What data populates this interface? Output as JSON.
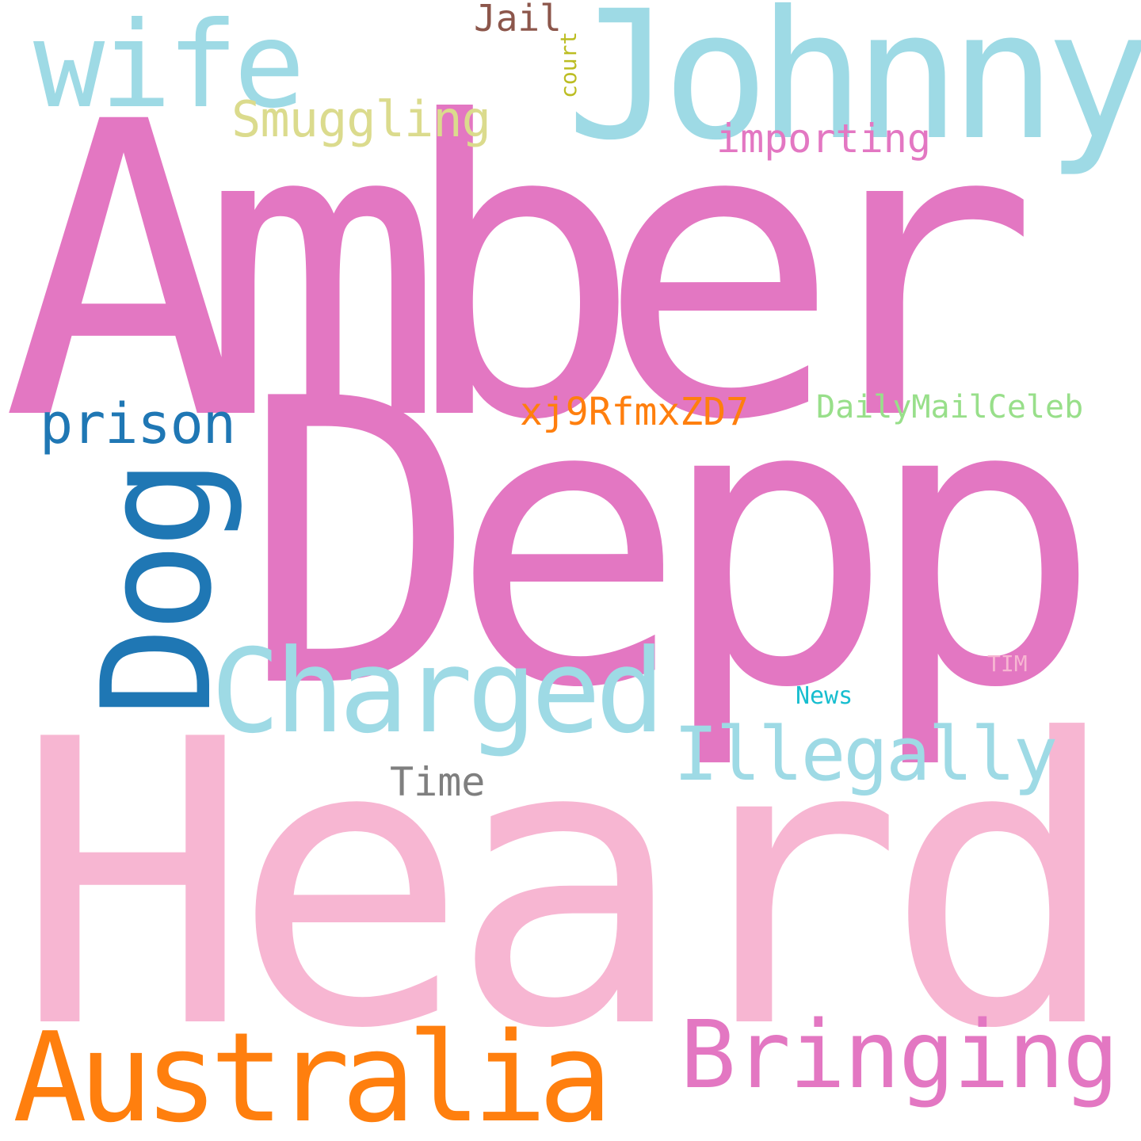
{
  "words": [
    {
      "id": "amber",
      "text": "Amber",
      "color": "#e377c2"
    },
    {
      "id": "depp",
      "text": "Depp",
      "color": "#e377c2"
    },
    {
      "id": "heard",
      "text": "Heard",
      "color": "#f7b6d2"
    },
    {
      "id": "johnny",
      "text": "Johnny",
      "color": "#9edae5"
    },
    {
      "id": "wife",
      "text": "wife",
      "color": "#9edae5"
    },
    {
      "id": "australia",
      "text": "Australia",
      "color": "#ff7f0e"
    },
    {
      "id": "bringing",
      "text": "Bringing",
      "color": "#e377c2"
    },
    {
      "id": "dog",
      "text": "Dog",
      "color": "#1f77b4"
    },
    {
      "id": "charged",
      "text": "Charged",
      "color": "#9edae5"
    },
    {
      "id": "illegally",
      "text": "Illegally",
      "color": "#9edae5"
    },
    {
      "id": "smuggling",
      "text": "Smuggling",
      "color": "#dbdb8d"
    },
    {
      "id": "prison",
      "text": "prison",
      "color": "#1f77b4"
    },
    {
      "id": "xj9",
      "text": "xj9RfmxZD7",
      "color": "#ff7f0e"
    },
    {
      "id": "dailymail",
      "text": "DailyMailCeleb",
      "color": "#98df8a"
    },
    {
      "id": "importing",
      "text": "importing",
      "color": "#e377c2"
    },
    {
      "id": "jail",
      "text": "Jail",
      "color": "#8c564b"
    },
    {
      "id": "court",
      "text": "court",
      "color": "#bcbd22"
    },
    {
      "id": "time",
      "text": "Time",
      "color": "#7f7f7f"
    },
    {
      "id": "news",
      "text": "News",
      "color": "#17becf"
    },
    {
      "id": "tim",
      "text": "TIM",
      "color": "#f7b6d2"
    }
  ]
}
